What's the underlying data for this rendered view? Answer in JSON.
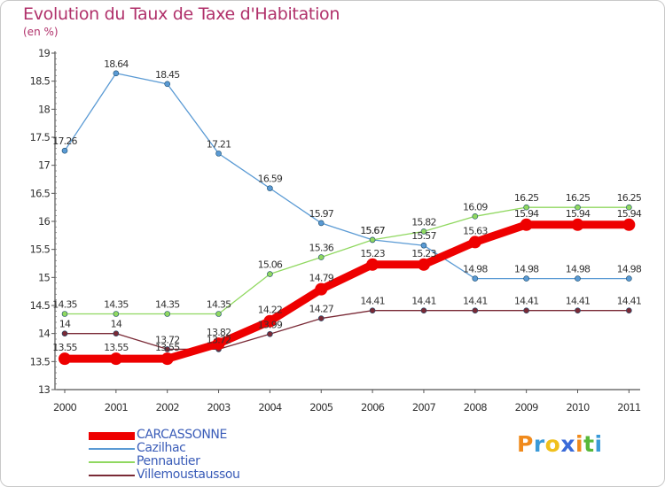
{
  "chart_data": {
    "type": "line",
    "title": "Evolution du Taux de Taxe d'Habitation",
    "subtitle": "(en %)",
    "xlabel": "",
    "ylabel": "",
    "categories": [
      "2000",
      "2001",
      "2002",
      "2003",
      "2004",
      "2005",
      "2006",
      "2007",
      "2008",
      "2009",
      "2010",
      "2011"
    ],
    "ylim": [
      13,
      19
    ],
    "yticks": [
      "13",
      "13.5",
      "14",
      "14.5",
      "15",
      "15.5",
      "16",
      "16.5",
      "17",
      "17.5",
      "18",
      "18.5",
      "19"
    ],
    "grid": false,
    "legend_position": "bottom-left",
    "series": [
      {
        "name": "CARCASSONNE",
        "color": "#ee0000",
        "values": [
          13.55,
          13.55,
          13.55,
          13.82,
          14.22,
          14.79,
          15.23,
          15.23,
          15.63,
          15.94,
          15.94,
          15.94
        ],
        "labels": [
          "13.55",
          "13.55",
          "13.55",
          "13.82",
          "14.22",
          "14.79",
          "15.23",
          "15.23",
          "15.63",
          "15.94",
          "15.94",
          "15.94"
        ]
      },
      {
        "name": "Cazilhac",
        "color": "#5a9ad4",
        "values": [
          17.26,
          18.64,
          18.45,
          17.21,
          16.59,
          15.97,
          15.67,
          15.57,
          14.98,
          14.98,
          14.98,
          14.98
        ],
        "labels": [
          "17.26",
          "18.64",
          "18.45",
          "17.21",
          "16.59",
          "15.97",
          "15.67",
          "15.57",
          "14.98",
          "14.98",
          "14.98",
          "14.98"
        ]
      },
      {
        "name": "Pennautier",
        "color": "#90d860",
        "values": [
          14.35,
          14.35,
          14.35,
          14.35,
          15.06,
          15.36,
          15.67,
          15.82,
          16.09,
          16.25,
          16.25,
          16.25
        ],
        "labels": [
          "14.35",
          "14.35",
          "14.35",
          "14.35",
          "15.06",
          "15.36",
          "15.67",
          "15.82",
          "16.09",
          "16.25",
          "16.25",
          "16.25"
        ]
      },
      {
        "name": "Villemoustaussou",
        "color": "#7a2a36",
        "values": [
          14,
          14,
          13.72,
          13.72,
          13.99,
          14.27,
          14.41,
          14.41,
          14.41,
          14.41,
          14.41,
          14.41
        ],
        "labels": [
          "14",
          "14",
          "13.72",
          "13.72",
          "13.99",
          "14.27",
          "14.41",
          "14.41",
          "14.41",
          "14.41",
          "14.41",
          "14.41"
        ]
      }
    ]
  },
  "legend": {
    "items": [
      "CARCASSONNE",
      "Cazilhac",
      "Pennautier",
      "Villemoustaussou"
    ]
  },
  "logo": {
    "letters": [
      "P",
      "r",
      "o",
      "x",
      "i",
      "t",
      "i"
    ],
    "colors": [
      "#f08a1c",
      "#3a9ad8",
      "#f0c01c",
      "#3a6ad8",
      "#f08a1c",
      "#58b83a",
      "#3a9ad8"
    ]
  }
}
